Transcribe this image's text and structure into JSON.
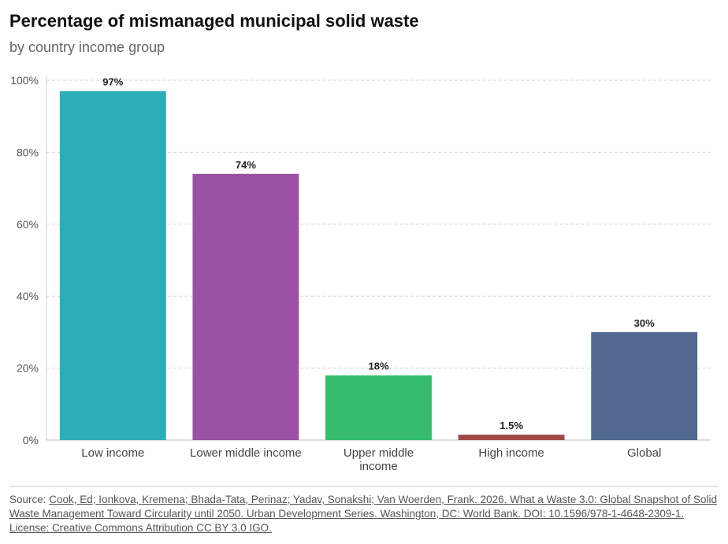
{
  "header": {
    "title": "Percentage of mismanaged municipal solid waste",
    "subtitle": "by country income group"
  },
  "chart_data": {
    "type": "bar",
    "title": "Percentage of mismanaged municipal solid waste",
    "subtitle": "by country income group",
    "categories": [
      [
        "Low income"
      ],
      [
        "Lower middle income"
      ],
      [
        "Upper middle",
        "income"
      ],
      [
        "High income"
      ],
      [
        "Global"
      ]
    ],
    "values": [
      97,
      74,
      18,
      1.5,
      30
    ],
    "value_labels": [
      "97%",
      "74%",
      "18%",
      "1.5%",
      "30%"
    ],
    "colors": [
      "#2caeb7",
      "#9b51a4",
      "#37bc6e",
      "#a04a4a",
      "#526891"
    ],
    "ylim": [
      0,
      100
    ],
    "yticks": [
      0,
      20,
      40,
      60,
      80,
      100
    ],
    "ytick_labels": [
      "0%",
      "20%",
      "40%",
      "60%",
      "80%",
      "100%"
    ],
    "grid": true,
    "xlabel": "",
    "ylabel": ""
  },
  "source": {
    "prefix": "Source: ",
    "link_text": "Cook, Ed; Ionkova, Kremena; Bhada-Tata, Perinaz; Yadav, Sonakshi; Van Woerden, Frank. 2026. What a Waste 3.0: Global Snapshot of Solid Waste Management Toward Circularity until 2050. Urban Development Series. Washington, DC: World Bank. DOI: 10.1596/978-1-4648-2309-1. License: Creative Commons Attribution CC BY 3.0 IGO."
  }
}
